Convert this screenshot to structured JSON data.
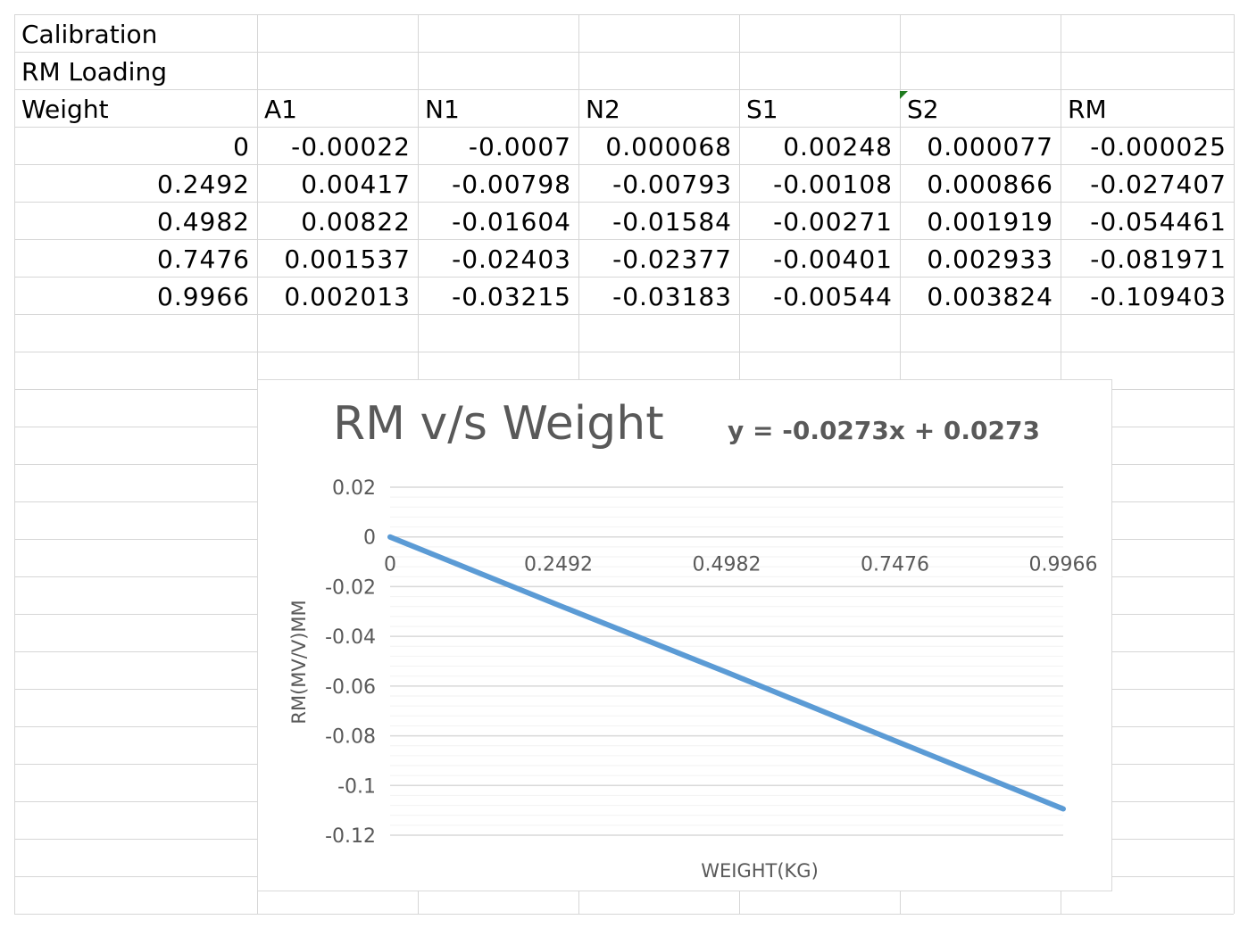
{
  "sheet": {
    "headers_top": [
      "Calibration",
      "RM Loading"
    ],
    "columns": [
      "Weight",
      "A1",
      "N1",
      "N2",
      "S1",
      "S2",
      "RM"
    ],
    "rows": [
      [
        "0",
        "-0.00022",
        "-0.0007",
        "0.000068",
        "0.00248",
        "0.000077",
        "-0.000025"
      ],
      [
        "0.2492",
        "0.00417",
        "-0.00798",
        "-0.00793",
        "-0.00108",
        "0.000866",
        "-0.027407"
      ],
      [
        "0.4982",
        "0.00822",
        "-0.01604",
        "-0.01584",
        "-0.00271",
        "0.001919",
        "-0.054461"
      ],
      [
        "0.7476",
        "0.001537",
        "-0.02403",
        "-0.02377",
        "-0.00401",
        "0.002933",
        "-0.081971"
      ],
      [
        "0.9966",
        "0.002013",
        "-0.03215",
        "-0.03183",
        "-0.00544",
        "0.003824",
        "-0.109403"
      ]
    ]
  },
  "chart_data": {
    "type": "line",
    "title": "RM v/s Weight",
    "trendline_equation": "y = -0.0273x + 0.0273",
    "xlabel": "WEIGHT(KG)",
    "ylabel": "RM(MV/V)MM",
    "categories": [
      "0",
      "0.2492",
      "0.4982",
      "0.7476",
      "0.9966"
    ],
    "series": [
      {
        "values": [
          -2.5e-05,
          -0.027407,
          -0.054461,
          -0.081971,
          -0.109403
        ]
      }
    ],
    "ylim": [
      -0.12,
      0.02
    ],
    "yticks": [
      0.02,
      0,
      -0.02,
      -0.04,
      -0.06,
      -0.08,
      -0.1,
      -0.12
    ],
    "ytick_labels": [
      "0.02",
      "0",
      "-0.02",
      "-0.04",
      "-0.06",
      "-0.08",
      "-0.1",
      "-0.12"
    ],
    "grid": true,
    "line_color": "#5b9bd5"
  }
}
